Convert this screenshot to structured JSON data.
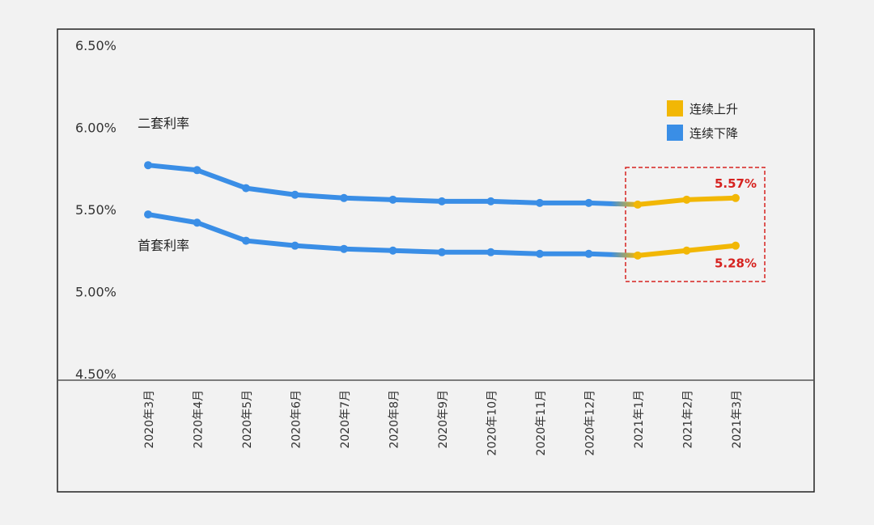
{
  "chart_data": {
    "type": "line",
    "title": "",
    "xlabel": "",
    "ylabel": "",
    "ylim": [
      4.5,
      6.5
    ],
    "yticks": [
      "6.50%",
      "6.00%",
      "5.50%",
      "5.00%",
      "4.50%"
    ],
    "ytick_values": [
      6.5,
      6.0,
      5.5,
      5.0,
      4.5
    ],
    "categories": [
      "2020年3月",
      "2020年4月",
      "2020年5月",
      "2020年6月",
      "2020年7月",
      "2020年8月",
      "2020年9月",
      "2020年10月",
      "2020年11月",
      "2020年12月",
      "2021年1月",
      "2021年2月",
      "2021年3月"
    ],
    "series": [
      {
        "name": "二套利率",
        "values": [
          5.77,
          5.74,
          5.63,
          5.59,
          5.57,
          5.56,
          5.55,
          5.55,
          5.54,
          5.54,
          5.53,
          5.56,
          5.57
        ]
      },
      {
        "name": "首套利率",
        "values": [
          5.47,
          5.42,
          5.31,
          5.28,
          5.26,
          5.25,
          5.24,
          5.24,
          5.23,
          5.23,
          5.22,
          5.25,
          5.28
        ]
      }
    ],
    "legend": [
      {
        "label": "连续上升",
        "color": "#f2b705"
      },
      {
        "label": "连续下降",
        "color": "#3a8ee6"
      }
    ],
    "rise_start_index": 10,
    "annotations": [
      {
        "text": "5.57%",
        "series": "二套利率",
        "index": 12
      },
      {
        "text": "5.28%",
        "series": "首套利率",
        "index": 12
      }
    ],
    "legend_position": "top-right"
  },
  "colors": {
    "rise": "#f2b705",
    "fall": "#3a8ee6",
    "highlight_box": "#d6221f",
    "annotation_text": "#d6221f",
    "frame": "#222222",
    "background": "#f2f2f2"
  }
}
